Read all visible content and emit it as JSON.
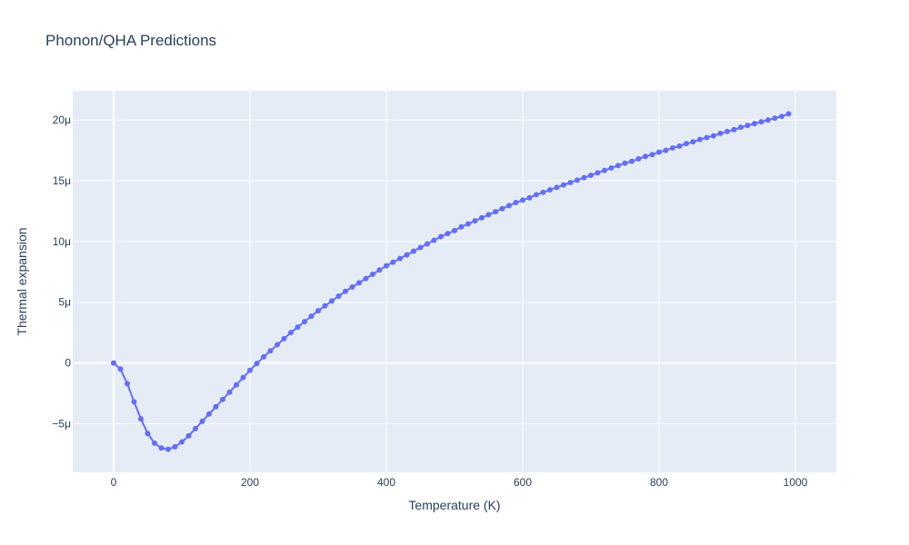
{
  "chart_data": {
    "type": "line",
    "title": "Phonon/QHA Predictions",
    "xlabel": "Temperature (K)",
    "ylabel": "Thermal expansion",
    "xlim": [
      -60,
      1060
    ],
    "ylim": [
      -9e-06,
      2.24e-05
    ],
    "x_ticks": [
      0,
      200,
      400,
      600,
      800,
      1000
    ],
    "x_tick_labels": [
      "0",
      "200",
      "400",
      "600",
      "800",
      "1000"
    ],
    "y_ticks": [
      -5e-06,
      0,
      5e-06,
      1e-05,
      1.5e-05,
      2e-05
    ],
    "y_tick_labels": [
      "−5μ",
      "0",
      "5μ",
      "10μ",
      "15μ",
      "20μ"
    ],
    "grid": true,
    "colors": {
      "series": "#636efa",
      "plot_bg": "#e5ecf6",
      "grid": "#ffffff",
      "text": "#2a3f5f"
    },
    "series": [
      {
        "mode": "lines+markers",
        "x": [
          0,
          10,
          20,
          30,
          40,
          50,
          60,
          70,
          80,
          90,
          100,
          110,
          120,
          130,
          140,
          150,
          160,
          170,
          180,
          190,
          200,
          210,
          220,
          230,
          240,
          250,
          260,
          270,
          280,
          290,
          300,
          310,
          320,
          330,
          340,
          350,
          360,
          370,
          380,
          390,
          400,
          410,
          420,
          430,
          440,
          450,
          460,
          470,
          480,
          490,
          500,
          510,
          520,
          530,
          540,
          550,
          560,
          570,
          580,
          590,
          600,
          610,
          620,
          630,
          640,
          650,
          660,
          670,
          680,
          690,
          700,
          710,
          720,
          730,
          740,
          750,
          760,
          770,
          780,
          790,
          800,
          810,
          820,
          830,
          840,
          850,
          860,
          870,
          880,
          890,
          900,
          910,
          920,
          930,
          940,
          950,
          960,
          970,
          980,
          990
        ],
        "y": [
          0,
          -5e-07,
          -1.7e-06,
          -3.2e-06,
          -4.6e-06,
          -5.8e-06,
          -6.6e-06,
          -7e-06,
          -7.1e-06,
          -6.9e-06,
          -6.5e-06,
          -6e-06,
          -5.4e-06,
          -4.8e-06,
          -4.2e-06,
          -3.6e-06,
          -3e-06,
          -2.4e-06,
          -1.8e-06,
          -1.2e-06,
          -6e-07,
          -5e-08,
          5e-07,
          1e-06,
          1.5e-06,
          2e-06,
          2.5e-06,
          2.95e-06,
          3.4e-06,
          3.85e-06,
          4.3e-06,
          4.7e-06,
          5.1e-06,
          5.5e-06,
          5.9e-06,
          6.25e-06,
          6.6e-06,
          6.95e-06,
          7.3e-06,
          7.65e-06,
          8e-06,
          8.3e-06,
          8.6e-06,
          8.9e-06,
          9.2e-06,
          9.5e-06,
          9.8e-06,
          1.01e-05,
          1.04e-05,
          1.065e-05,
          1.09e-05,
          1.12e-05,
          1.145e-05,
          1.17e-05,
          1.195e-05,
          1.22e-05,
          1.245e-05,
          1.27e-05,
          1.295e-05,
          1.32e-05,
          1.34e-05,
          1.36e-05,
          1.385e-05,
          1.405e-05,
          1.425e-05,
          1.445e-05,
          1.465e-05,
          1.485e-05,
          1.505e-05,
          1.525e-05,
          1.545e-05,
          1.565e-05,
          1.585e-05,
          1.605e-05,
          1.625e-05,
          1.645e-05,
          1.66e-05,
          1.68e-05,
          1.7e-05,
          1.715e-05,
          1.735e-05,
          1.75e-05,
          1.77e-05,
          1.785e-05,
          1.805e-05,
          1.82e-05,
          1.84e-05,
          1.855e-05,
          1.87e-05,
          1.89e-05,
          1.905e-05,
          1.92e-05,
          1.94e-05,
          1.955e-05,
          1.97e-05,
          1.985e-05,
          2e-05,
          2.015e-05,
          2.03e-05,
          2.05e-05
        ]
      }
    ]
  }
}
